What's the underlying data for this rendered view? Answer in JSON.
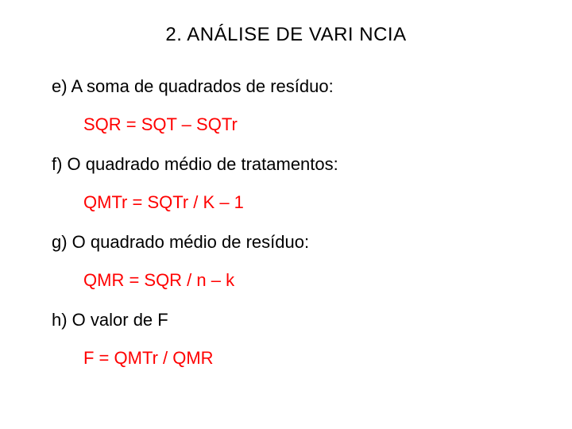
{
  "title": "2. ANÁLISE DE VARI NCIA",
  "items": [
    {
      "label": "e) A soma de quadrados de resíduo:",
      "formula": "SQR = SQT – SQTr"
    },
    {
      "label": "f) O quadrado médio de tratamentos:",
      "formula": "QMTr = SQTr / K – 1"
    },
    {
      "label": "g) O quadrado médio de resíduo:",
      "formula": "QMR = SQR / n – k"
    },
    {
      "label": "h) O valor de F",
      "formula": "F = QMTr / QMR"
    }
  ],
  "colors": {
    "text": "#000000",
    "formula": "#ff0000",
    "background": "#ffffff"
  },
  "typography": {
    "title_fontsize": 24,
    "body_fontsize": 22,
    "font_family": "Arial"
  }
}
